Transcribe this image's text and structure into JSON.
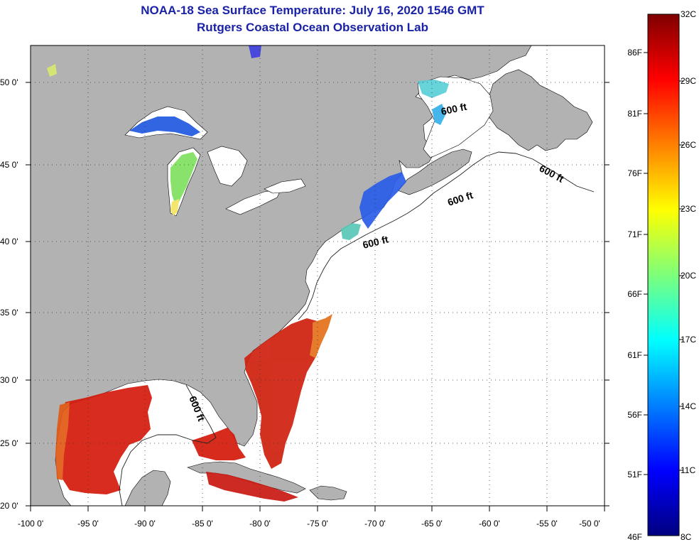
{
  "header": {
    "title": "NOAA-18 Sea Surface Temperature:  July 16, 2020 1546 GMT",
    "subtitle": "Rutgers Coastal Ocean Observation Lab"
  },
  "axes": {
    "x_ticks": [
      "-100 0'",
      "-95 0'",
      "-90 0'",
      "-85 0'",
      "-80 0'",
      "-75 0'",
      "-70 0'",
      "-65 0'",
      "-60 0'",
      "-55 0'",
      "-50 0'"
    ],
    "y_ticks": [
      "20 0'",
      "25 0'",
      "30 0'",
      "35 0'",
      "40 0'",
      "45 0'",
      "50 0'"
    ]
  },
  "contours": {
    "labels": [
      "600 ft",
      "600 ft",
      "600 ft",
      "600 ft",
      "600 ft"
    ]
  },
  "colorbar": {
    "celsius": [
      "32C",
      "29C",
      "26C",
      "23C",
      "20C",
      "17C",
      "14C",
      "11C",
      "8C"
    ],
    "fahrenheit": [
      "86F",
      "81F",
      "76F",
      "71F",
      "66F",
      "61F",
      "56F",
      "51F",
      "46F"
    ]
  },
  "colors": {
    "land": "#b2b2b2",
    "ocean": "#ffffff",
    "title": "#1a22a6",
    "warm": "#d41a0c",
    "cold": "#1640d0"
  }
}
